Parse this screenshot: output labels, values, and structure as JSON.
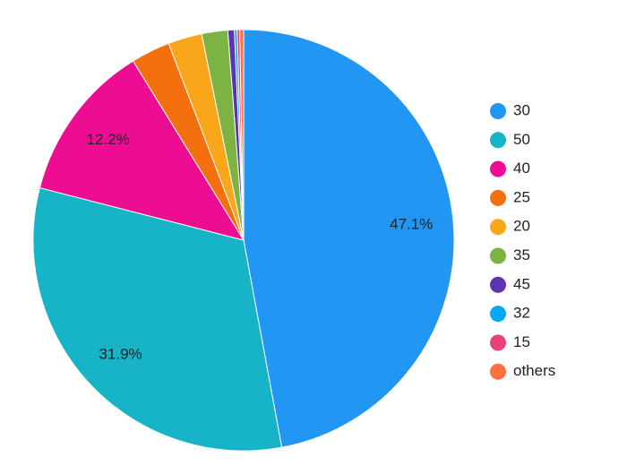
{
  "chart_data": {
    "type": "pie",
    "categories": [
      "30",
      "50",
      "40",
      "25",
      "20",
      "35",
      "45",
      "32",
      "15",
      "others"
    ],
    "values": [
      47.1,
      31.9,
      12.2,
      3.0,
      2.6,
      2.0,
      0.5,
      0.2,
      0.2,
      0.3
    ],
    "value_labels": [
      "47.1%",
      "31.9%",
      "12.2%",
      null,
      null,
      null,
      null,
      null,
      null,
      null
    ],
    "colors": [
      "#2196f3",
      "#17b3c6",
      "#ec0d92",
      "#f4700f",
      "#f9a61a",
      "#7cb342",
      "#5e35b1",
      "#03a9f4",
      "#ec407a",
      "#ff7043"
    ],
    "legend": "right"
  }
}
